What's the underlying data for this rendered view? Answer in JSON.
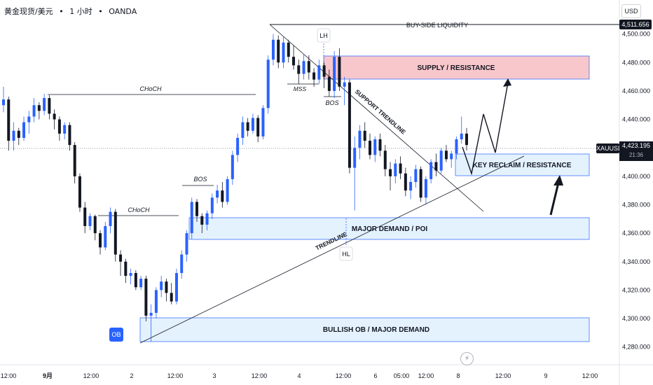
{
  "header": {
    "symbol_title": "黄金现货/美元",
    "interval": "1 小时",
    "exchange": "OANDA",
    "separator": "•"
  },
  "currency_button": "USD",
  "symbol_tag": "XAUUSD",
  "last_price": {
    "value": "4,423.195",
    "countdown": "21:36"
  },
  "liquidity_price": "4,511.656",
  "bolt_icon": "lightning-icon",
  "chart_data": {
    "type": "candlestick",
    "symbol": "XAUUSD",
    "timeframe": "1H",
    "ylim": [
      4270,
      4520
    ],
    "y_ticks": [
      4280,
      4300,
      4320,
      4340,
      4360,
      4380,
      4400,
      4420,
      4440,
      4460,
      4480,
      4500
    ],
    "x_ticks": [
      "12:00",
      "9月",
      "12:00",
      "2",
      "12:00",
      "3",
      "12:00",
      "4",
      "12:00",
      "6",
      "05:00",
      "12:00",
      "8",
      "12:00",
      "9",
      "12:00"
    ],
    "colors": {
      "up": "#2962ff",
      "down": "#131722"
    },
    "candles": [
      [
        4450,
        4463,
        4445,
        4454
      ],
      [
        4454,
        4456,
        4418,
        4425
      ],
      [
        4425,
        4438,
        4418,
        4432
      ],
      [
        4432,
        4434,
        4422,
        4427
      ],
      [
        4427,
        4442,
        4425,
        4438
      ],
      [
        4438,
        4446,
        4430,
        4442
      ],
      [
        4442,
        4455,
        4438,
        4450
      ],
      [
        4450,
        4452,
        4440,
        4446
      ],
      [
        4446,
        4458,
        4443,
        4455
      ],
      [
        4455,
        4457,
        4440,
        4444
      ],
      [
        4444,
        4447,
        4433,
        4440
      ],
      [
        4440,
        4442,
        4425,
        4430
      ],
      [
        4430,
        4438,
        4426,
        4436
      ],
      [
        4436,
        4438,
        4418,
        4422
      ],
      [
        4422,
        4424,
        4395,
        4400
      ],
      [
        4400,
        4402,
        4375,
        4378
      ],
      [
        4378,
        4382,
        4360,
        4365
      ],
      [
        4365,
        4374,
        4362,
        4372
      ],
      [
        4372,
        4373,
        4355,
        4360
      ],
      [
        4360,
        4362,
        4345,
        4350
      ],
      [
        4350,
        4368,
        4348,
        4365
      ],
      [
        4365,
        4378,
        4360,
        4375
      ],
      [
        4375,
        4377,
        4340,
        4345
      ],
      [
        4345,
        4348,
        4330,
        4340
      ],
      [
        4340,
        4342,
        4325,
        4330
      ],
      [
        4330,
        4335,
        4324,
        4332
      ],
      [
        4332,
        4334,
        4320,
        4322
      ],
      [
        4322,
        4330,
        4320,
        4328
      ],
      [
        4328,
        4330,
        4298,
        4302
      ],
      [
        4302,
        4310,
        4284,
        4304
      ],
      [
        4304,
        4322,
        4300,
        4320
      ],
      [
        4320,
        4330,
        4315,
        4326
      ],
      [
        4326,
        4328,
        4312,
        4318
      ],
      [
        4318,
        4325,
        4310,
        4312
      ],
      [
        4312,
        4335,
        4310,
        4332
      ],
      [
        4332,
        4348,
        4328,
        4345
      ],
      [
        4345,
        4362,
        4340,
        4360
      ],
      [
        4360,
        4385,
        4356,
        4382
      ],
      [
        4382,
        4384,
        4368,
        4372
      ],
      [
        4372,
        4374,
        4360,
        4366
      ],
      [
        4366,
        4376,
        4362,
        4374
      ],
      [
        4374,
        4388,
        4370,
        4385
      ],
      [
        4385,
        4394,
        4381,
        4390
      ],
      [
        4390,
        4396,
        4378,
        4382
      ],
      [
        4382,
        4400,
        4380,
        4398
      ],
      [
        4398,
        4418,
        4394,
        4415
      ],
      [
        4415,
        4430,
        4410,
        4427
      ],
      [
        4427,
        4442,
        4422,
        4438
      ],
      [
        4438,
        4441,
        4428,
        4432
      ],
      [
        4432,
        4444,
        4430,
        4441
      ],
      [
        4441,
        4443,
        4424,
        4428
      ],
      [
        4428,
        4450,
        4426,
        4448
      ],
      [
        4448,
        4485,
        4444,
        4482
      ],
      [
        4482,
        4500,
        4478,
        4496
      ],
      [
        4496,
        4499,
        4476,
        4480
      ],
      [
        4480,
        4498,
        4476,
        4494
      ],
      [
        4494,
        4496,
        4480,
        4484
      ],
      [
        4484,
        4492,
        4475,
        4478
      ],
      [
        4478,
        4482,
        4465,
        4472
      ],
      [
        4472,
        4486,
        4468,
        4481
      ],
      [
        4481,
        4485,
        4468,
        4473
      ],
      [
        4473,
        4476,
        4463,
        4468
      ],
      [
        4468,
        4482,
        4465,
        4478
      ],
      [
        4478,
        4480,
        4462,
        4470
      ],
      [
        4470,
        4475,
        4456,
        4460
      ],
      [
        4460,
        4488,
        4455,
        4484
      ],
      [
        4484,
        4490,
        4460,
        4463
      ],
      [
        4463,
        4470,
        4450,
        4466
      ],
      [
        4466,
        4468,
        4402,
        4406
      ],
      [
        4406,
        4428,
        4376,
        4420
      ],
      [
        4420,
        4436,
        4412,
        4432
      ],
      [
        4432,
        4438,
        4420,
        4425
      ],
      [
        4425,
        4430,
        4412,
        4415
      ],
      [
        4415,
        4428,
        4410,
        4426
      ],
      [
        4426,
        4430,
        4414,
        4418
      ],
      [
        4418,
        4422,
        4400,
        4405
      ],
      [
        4405,
        4410,
        4390,
        4400
      ],
      [
        4400,
        4412,
        4395,
        4409
      ],
      [
        4409,
        4414,
        4398,
        4402
      ],
      [
        4402,
        4406,
        4386,
        4390
      ],
      [
        4390,
        4400,
        4384,
        4396
      ],
      [
        4396,
        4408,
        4392,
        4405
      ],
      [
        4405,
        4407,
        4382,
        4385
      ],
      [
        4385,
        4400,
        4380,
        4398
      ],
      [
        4398,
        4412,
        4395,
        4410
      ],
      [
        4410,
        4416,
        4400,
        4404
      ],
      [
        4404,
        4420,
        4402,
        4418
      ],
      [
        4418,
        4422,
        4410,
        4412
      ],
      [
        4412,
        4418,
        4406,
        4416
      ],
      [
        4416,
        4428,
        4412,
        4426
      ],
      [
        4426,
        4442,
        4423,
        4430
      ],
      [
        4430,
        4434,
        4418,
        4422
      ]
    ]
  },
  "annotations": {
    "choch_1": "CHoCH",
    "choch_2": "CHoCH",
    "bos_1": "BOS",
    "bos_2": "BOS",
    "mss": "MSS",
    "lh": "LH",
    "hl": "HL",
    "ob": "OB",
    "buy_side_liquidity": "BUY-SIDE LIQUIDITY",
    "supply_zone": "SUPPLY / RESISTANCE",
    "key_reclaim_zone": "KEY RECLAIM / RESISTANCE",
    "major_demand_zone": "MAJOR DEMAND / POI",
    "bullish_ob_zone": "BULLISH OB / MAJOR DEMAND",
    "support_trendline": "SUPPORT TRENDLINE",
    "trendline": "TRENDLINE"
  },
  "zone_colors": {
    "supply_fill": "#f8c7cc",
    "supply_border": "#2962ff",
    "demand_fill": "#e3f2fd",
    "demand_border": "#2962ff"
  }
}
